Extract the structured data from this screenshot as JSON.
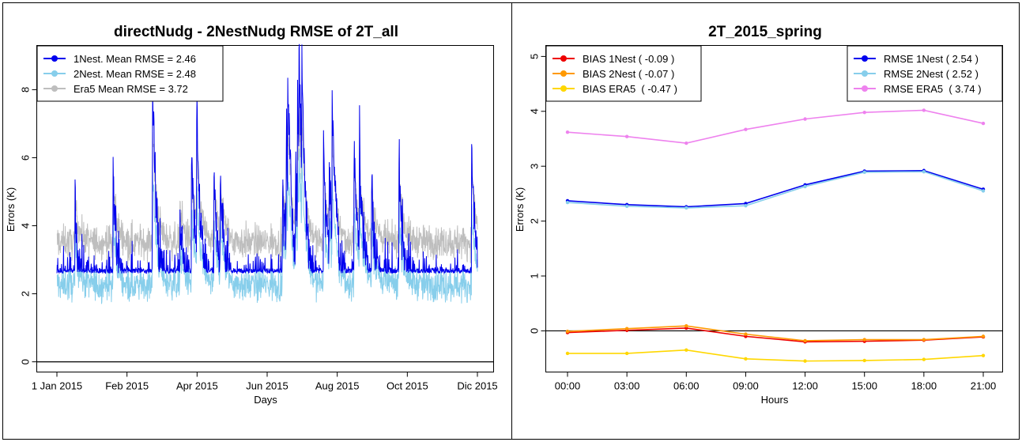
{
  "chart_data": [
    {
      "type": "line",
      "title": "directNudg - 2NestNudg RMSE of  2T_all",
      "xlabel": "Days",
      "ylabel": "Errors (K)",
      "x_ticks": [
        "1 Jan 2015",
        "Feb 2015",
        "Apr 2015",
        "Jun 2015",
        "Aug 2015",
        "Oct 2015",
        "Dic 2015"
      ],
      "y_ticks": [
        "0",
        "2",
        "4",
        "6",
        "8"
      ],
      "ylim": [
        -0.3,
        9.3
      ],
      "legend_position": "top-left",
      "grid": false,
      "series": [
        {
          "name": "1Nest. Mean RMSE = 2.46",
          "color": "#0000ee",
          "mean": 2.46
        },
        {
          "name": "2Nest. Mean RMSE = 2.48",
          "color": "#87ceeb",
          "mean": 2.48
        },
        {
          "name": "Era5 Mean RMSE = 3.72",
          "color": "#bebebe",
          "mean": 3.72
        }
      ]
    },
    {
      "type": "line",
      "title": "2T_2015_spring",
      "xlabel": "Hours",
      "ylabel": "Errors (K)",
      "categories": [
        "00:00",
        "03:00",
        "06:00",
        "09:00",
        "12:00",
        "15:00",
        "18:00",
        "21:00"
      ],
      "y_ticks": [
        "0",
        "1",
        "2",
        "3",
        "4",
        "5"
      ],
      "ylim": [
        -0.75,
        5.2
      ],
      "grid": false,
      "legend_left": [
        {
          "name": "BIAS 1Nest ( -0.09 )",
          "series": 0
        },
        {
          "name": "BIAS 2Nest ( -0.07 )",
          "series": 1
        },
        {
          "name": "BIAS ERA5  ( -0.47 )",
          "series": 2
        }
      ],
      "legend_right": [
        {
          "name": "RMSE 1Nest ( 2.54 )",
          "series": 3
        },
        {
          "name": "RMSE 2Nest ( 2.52 )",
          "series": 4
        },
        {
          "name": "RMSE ERA5  ( 3.74 )",
          "series": 5
        }
      ],
      "series": [
        {
          "name": "BIAS 1Nest",
          "color": "#ee0000",
          "values": [
            -0.03,
            0.01,
            0.05,
            -0.1,
            -0.2,
            -0.19,
            -0.17,
            -0.11
          ]
        },
        {
          "name": "BIAS 2Nest",
          "color": "#ff9900",
          "values": [
            -0.01,
            0.04,
            0.09,
            -0.06,
            -0.18,
            -0.16,
            -0.16,
            -0.1
          ]
        },
        {
          "name": "BIAS ERA5",
          "color": "#ffd700",
          "values": [
            -0.41,
            -0.41,
            -0.35,
            -0.51,
            -0.55,
            -0.54,
            -0.52,
            -0.45
          ]
        },
        {
          "name": "RMSE 1Nest",
          "color": "#0000ee",
          "values": [
            2.37,
            2.3,
            2.26,
            2.32,
            2.66,
            2.91,
            2.92,
            2.58
          ]
        },
        {
          "name": "RMSE 2Nest",
          "color": "#87ceeb",
          "values": [
            2.34,
            2.27,
            2.24,
            2.28,
            2.63,
            2.89,
            2.9,
            2.55
          ]
        },
        {
          "name": "RMSE ERA5",
          "color": "#ee82ee",
          "values": [
            3.62,
            3.54,
            3.42,
            3.67,
            3.86,
            3.98,
            4.02,
            3.78
          ]
        }
      ]
    }
  ]
}
